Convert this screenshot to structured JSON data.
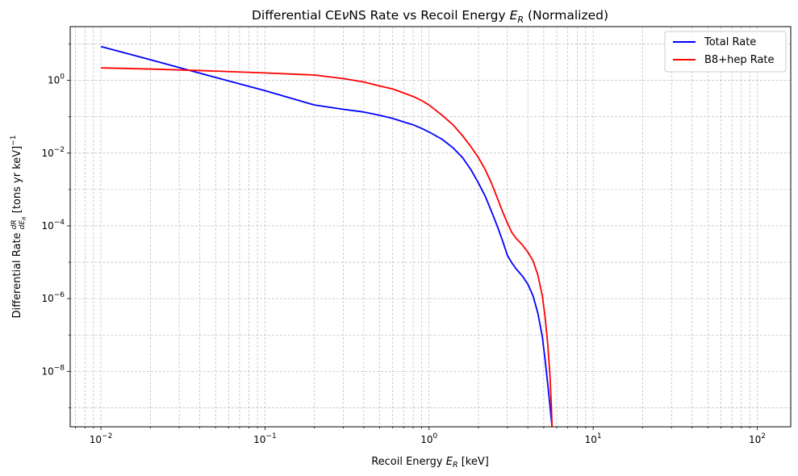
{
  "chart_data": {
    "type": "line",
    "title": "Differential CEνNS Rate vs Recoil Energy E_R (Normalized)",
    "xlabel": "Recoil Energy E_R [keV]",
    "ylabel": "Differential Rate dR/dE_R [tons yr keV]^-1",
    "x_scale": "log",
    "y_scale": "log",
    "xlim": [
      0.0065,
      160
    ],
    "ylim": [
      3e-10,
      30
    ],
    "x_ticks": [
      {
        "value": 0.01,
        "base": "10",
        "exp": "−2"
      },
      {
        "value": 0.1,
        "base": "10",
        "exp": "−1"
      },
      {
        "value": 1,
        "base": "10",
        "exp": "0"
      },
      {
        "value": 10,
        "base": "10",
        "exp": "1"
      },
      {
        "value": 100,
        "base": "10",
        "exp": "2"
      }
    ],
    "y_ticks": [
      {
        "value": 1,
        "base": "10",
        "exp": "0"
      },
      {
        "value": 0.01,
        "base": "10",
        "exp": "−2"
      },
      {
        "value": 0.0001,
        "base": "10",
        "exp": "−4"
      },
      {
        "value": 1e-06,
        "base": "10",
        "exp": "−6"
      },
      {
        "value": 1e-08,
        "base": "10",
        "exp": "−8"
      }
    ],
    "grid": true,
    "legend_position": "top-right",
    "series": [
      {
        "name": "Total Rate",
        "color": "#0000ff",
        "points": [
          [
            0.01,
            8.5
          ],
          [
            0.02,
            3.7
          ],
          [
            0.05,
            1.2
          ],
          [
            0.1,
            0.52
          ],
          [
            0.2,
            0.21
          ],
          [
            0.3,
            0.16
          ],
          [
            0.4,
            0.135
          ],
          [
            0.5,
            0.11
          ],
          [
            0.6,
            0.09
          ],
          [
            0.7,
            0.072
          ],
          [
            0.8,
            0.06
          ],
          [
            0.9,
            0.048
          ],
          [
            1.0,
            0.038
          ],
          [
            1.2,
            0.024
          ],
          [
            1.4,
            0.014
          ],
          [
            1.6,
            0.0075
          ],
          [
            1.8,
            0.0035
          ],
          [
            2.0,
            0.0015
          ],
          [
            2.2,
            0.00065
          ],
          [
            2.4,
            0.00025
          ],
          [
            2.6,
            0.0001
          ],
          [
            2.8,
            4e-05
          ],
          [
            3.0,
            1.55e-05
          ],
          [
            3.2,
            9.5e-06
          ],
          [
            3.4,
            6.5e-06
          ],
          [
            3.7,
            4.2e-06
          ],
          [
            4.0,
            2.5e-06
          ],
          [
            4.3,
            1.2e-06
          ],
          [
            4.6,
            4e-07
          ],
          [
            4.9,
            9e-08
          ],
          [
            5.1,
            2e-08
          ],
          [
            5.3,
            4e-09
          ],
          [
            5.45,
            1.2e-09
          ],
          [
            5.55,
            5e-10
          ],
          [
            5.62,
            3e-10
          ]
        ]
      },
      {
        "name": "B8+hep Rate",
        "color": "#ff0000",
        "points": [
          [
            0.01,
            2.2
          ],
          [
            0.02,
            2.05
          ],
          [
            0.05,
            1.8
          ],
          [
            0.1,
            1.6
          ],
          [
            0.2,
            1.4
          ],
          [
            0.3,
            1.12
          ],
          [
            0.4,
            0.9
          ],
          [
            0.5,
            0.7
          ],
          [
            0.6,
            0.58
          ],
          [
            0.7,
            0.45
          ],
          [
            0.8,
            0.36
          ],
          [
            0.9,
            0.28
          ],
          [
            1.0,
            0.21
          ],
          [
            1.2,
            0.11
          ],
          [
            1.4,
            0.06
          ],
          [
            1.6,
            0.03
          ],
          [
            1.8,
            0.015
          ],
          [
            2.0,
            0.0075
          ],
          [
            2.2,
            0.0035
          ],
          [
            2.4,
            0.0015
          ],
          [
            2.6,
            0.0006
          ],
          [
            2.8,
            0.00025
          ],
          [
            3.0,
            0.00012
          ],
          [
            3.2,
            6.5e-05
          ],
          [
            3.4,
            4.5e-05
          ],
          [
            3.7,
            3e-05
          ],
          [
            4.0,
            1.9e-05
          ],
          [
            4.3,
            1.1e-05
          ],
          [
            4.6,
            4.5e-06
          ],
          [
            4.9,
            1.2e-06
          ],
          [
            5.1,
            3e-07
          ],
          [
            5.3,
            5e-08
          ],
          [
            5.45,
            8e-09
          ],
          [
            5.55,
            1.5e-09
          ],
          [
            5.62,
            3e-10
          ]
        ]
      }
    ]
  }
}
